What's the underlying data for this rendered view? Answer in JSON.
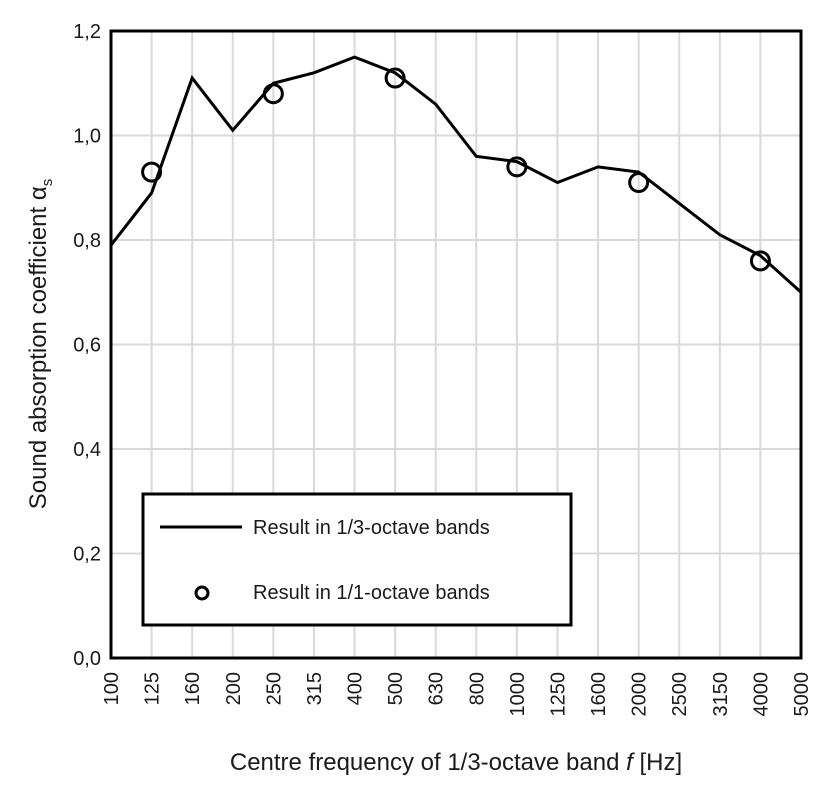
{
  "chart_data": {
    "type": "line",
    "xlabel": "Centre frequency of 1/3-octave band",
    "xlabel_symbol": "f",
    "xlabel_unit": "[Hz]",
    "ylabel": "Sound absorption coefficient α",
    "ylabel_subscript": "s",
    "categories": [
      "100",
      "125",
      "160",
      "200",
      "250",
      "315",
      "400",
      "500",
      "630",
      "800",
      "1000",
      "1250",
      "1600",
      "2000",
      "2500",
      "3150",
      "4000",
      "5000"
    ],
    "ylim": [
      0,
      1.2
    ],
    "yticks": [
      "0,0",
      "0,2",
      "0,4",
      "0,6",
      "0,8",
      "1,0",
      "1,2"
    ],
    "grid": true,
    "legend_position": "bottom-left",
    "series": [
      {
        "name": "Result in 1/3-octave bands",
        "style": "line",
        "color": "#000000",
        "x": [
          "100",
          "125",
          "160",
          "200",
          "250",
          "315",
          "400",
          "500",
          "630",
          "800",
          "1000",
          "1250",
          "1600",
          "2000",
          "2500",
          "3150",
          "4000",
          "5000"
        ],
        "values": [
          0.79,
          0.89,
          1.11,
          1.01,
          1.1,
          1.12,
          1.15,
          1.12,
          1.06,
          0.96,
          0.95,
          0.91,
          0.94,
          0.93,
          0.87,
          0.81,
          0.77,
          0.7
        ]
      },
      {
        "name": "Result in 1/1-octave bands",
        "style": "marker",
        "color": "#000000",
        "x": [
          "125",
          "250",
          "500",
          "1000",
          "2000",
          "4000"
        ],
        "values": [
          0.93,
          1.08,
          1.11,
          0.94,
          0.91,
          0.76
        ]
      }
    ]
  }
}
